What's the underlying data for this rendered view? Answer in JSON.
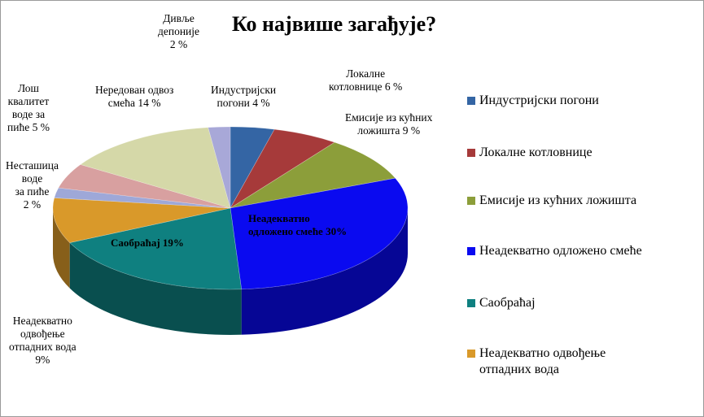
{
  "chart_data": {
    "type": "pie",
    "title": "Ко највише загађује?",
    "legend_position": "right",
    "slices": [
      {
        "legend": "Индустријски погони",
        "value": 4,
        "color": "#3465A4",
        "label_lines": [
          "Индустријски",
          "погони 4 %"
        ]
      },
      {
        "legend": "Локалне котловнице",
        "value": 6,
        "color": "#A63A3A",
        "label_lines": [
          "Локалне",
          "котловнице 6 %"
        ]
      },
      {
        "legend": "Емисије из кућних ложишта",
        "value": 9,
        "color": "#8C9E3A",
        "label_lines": [
          "Емисије из кућних",
          "ложишта 9 %"
        ]
      },
      {
        "legend": "Неадекватно одложено смеће",
        "value": 30,
        "color": "#0A0AF0",
        "label_lines": [
          "Неадекватно",
          "одложено смеће 30%"
        ]
      },
      {
        "legend": "Саобраћај",
        "value": 19,
        "color": "#0F8080",
        "label_lines": [
          "Саобраћај 19%"
        ]
      },
      {
        "legend": "Неадекватно одвођење отпадних вода",
        "value": 9,
        "color": "#D9992A",
        "label_lines": [
          "Неадекватно",
          "одвођење",
          "отпадних вода",
          "9%"
        ]
      },
      {
        "legend": "Несташица воде за пиће",
        "value": 2,
        "color": "#9EA8D8",
        "label_lines": [
          "Несташица",
          "воде",
          "за пиће",
          "2 %"
        ]
      },
      {
        "legend": "Лош квалитет воде за пиће",
        "value": 5,
        "color": "#D8A0A0",
        "label_lines": [
          "Лош",
          "квалитет",
          "воде за",
          "пиће 5 %"
        ]
      },
      {
        "legend": "Нередован одвоз смећа",
        "value": 14,
        "color": "#D5D8A8",
        "label_lines": [
          "Нередован одвоз",
          "смећа 14 %"
        ]
      },
      {
        "legend": "Дивље депоније",
        "value": 2,
        "color": "#A8A8D8",
        "label_lines": [
          "Дивље",
          "депоније",
          "2 %"
        ]
      }
    ],
    "legend_entries_visible": [
      "Индустријски погони",
      "Локалне котловнице",
      "Емисије из кућних ложишта",
      "Неадекватно одложено смеће",
      "Саобраћај",
      "Неадекватно одвођење отпадних вода"
    ]
  }
}
